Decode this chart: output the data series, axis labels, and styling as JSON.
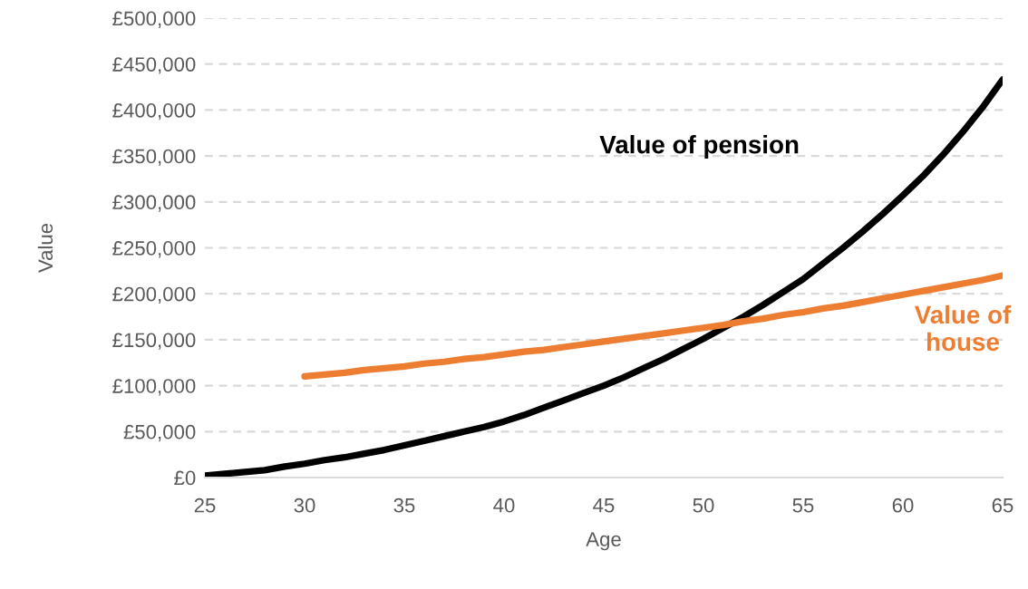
{
  "chart_data": {
    "type": "line",
    "xlabel": "Age",
    "ylabel": "Value",
    "xlim": [
      25,
      65
    ],
    "xticks": [
      25,
      30,
      35,
      40,
      45,
      50,
      55,
      60,
      65
    ],
    "ylim": [
      0,
      500000
    ],
    "yticks": [
      {
        "value": 0,
        "label": "£0"
      },
      {
        "value": 50000,
        "label": "£50,000"
      },
      {
        "value": 100000,
        "label": "£100,000"
      },
      {
        "value": 150000,
        "label": "£150,000"
      },
      {
        "value": 200000,
        "label": "£200,000"
      },
      {
        "value": 250000,
        "label": "£250,000"
      },
      {
        "value": 300000,
        "label": "£300,000"
      },
      {
        "value": 350000,
        "label": "£350,000"
      },
      {
        "value": 400000,
        "label": "£400,000"
      },
      {
        "value": 450000,
        "label": "£450,000"
      },
      {
        "value": 500000,
        "label": "£500,000"
      }
    ],
    "grid": "y",
    "legend": false,
    "marker": "none",
    "line_style": "solid",
    "series": [
      {
        "name": "Value of pension",
        "color": "#000000",
        "x": [
          25,
          26,
          27,
          28,
          29,
          30,
          31,
          32,
          33,
          34,
          35,
          36,
          37,
          38,
          39,
          40,
          41,
          42,
          43,
          44,
          45,
          46,
          47,
          48,
          49,
          50,
          51,
          52,
          53,
          54,
          55,
          56,
          57,
          58,
          59,
          60,
          61,
          62,
          63,
          64,
          65
        ],
        "values": [
          2000,
          4000,
          6000,
          8000,
          12000,
          15000,
          19000,
          22000,
          26000,
          30000,
          35000,
          40000,
          45000,
          50000,
          55000,
          61000,
          68000,
          76000,
          84000,
          92000,
          100000,
          109000,
          119000,
          129000,
          140000,
          151000,
          163000,
          175000,
          188000,
          202000,
          216000,
          233000,
          250000,
          268000,
          287000,
          307000,
          328000,
          351000,
          376000,
          403000,
          433000
        ]
      },
      {
        "name": "Value of house",
        "color": "#ed7d31",
        "x": [
          30,
          31,
          32,
          33,
          34,
          35,
          36,
          37,
          38,
          39,
          40,
          41,
          42,
          43,
          44,
          45,
          46,
          47,
          48,
          49,
          50,
          51,
          52,
          53,
          54,
          55,
          56,
          57,
          58,
          59,
          60,
          61,
          62,
          63,
          64,
          65
        ],
        "values": [
          110000,
          112000,
          114000,
          117000,
          119000,
          121000,
          124000,
          126000,
          129000,
          131000,
          134000,
          137000,
          139000,
          142000,
          145000,
          148000,
          151000,
          154000,
          157000,
          160000,
          163000,
          166000,
          170000,
          173000,
          177000,
          180000,
          184000,
          187000,
          191000,
          195000,
          199000,
          203000,
          207000,
          211000,
          215000,
          220000
        ]
      }
    ]
  }
}
